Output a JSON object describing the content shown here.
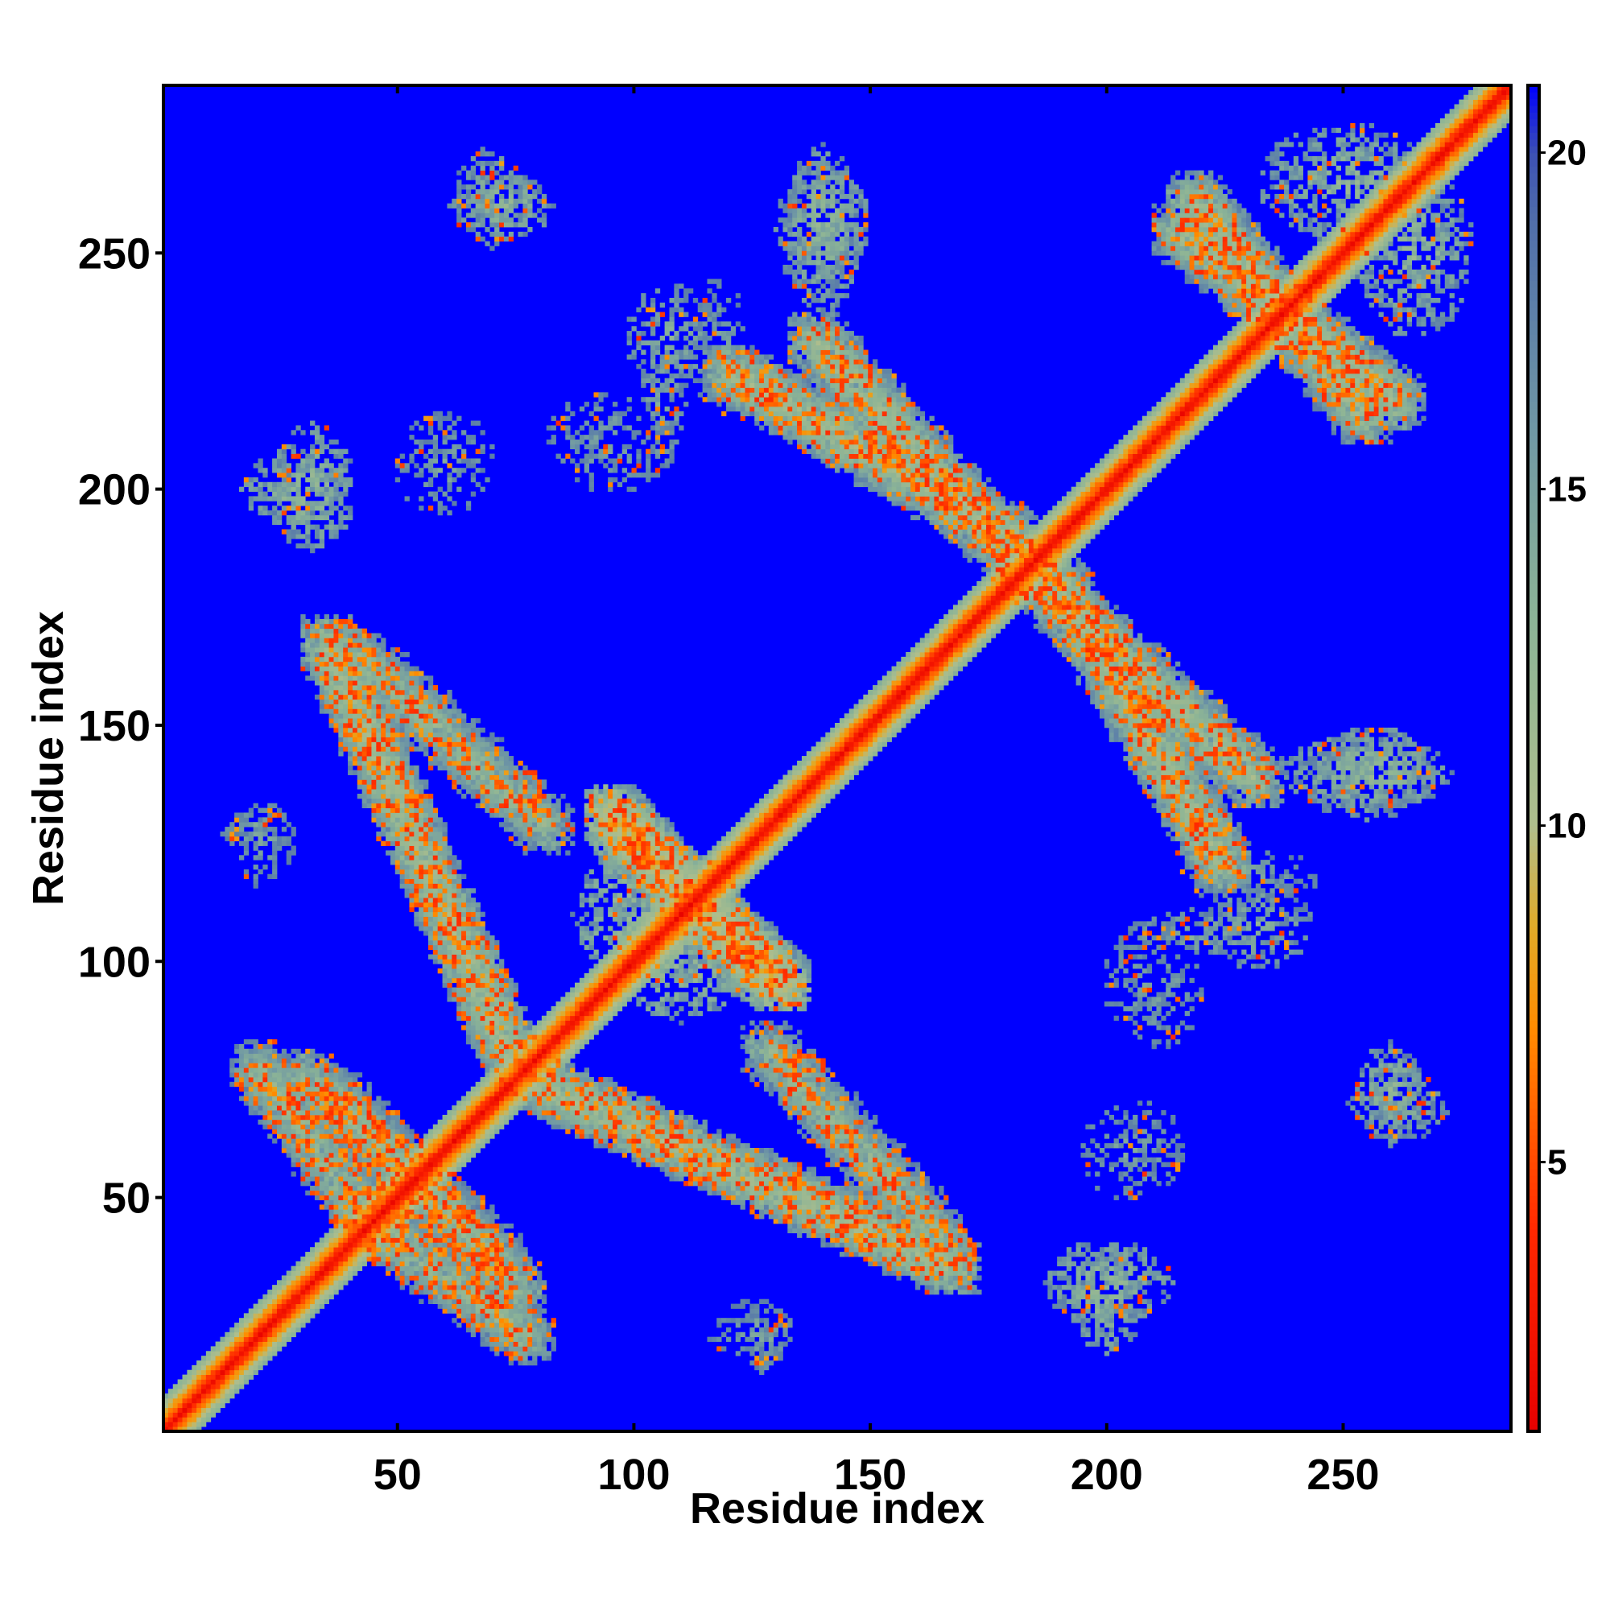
{
  "chart_data": {
    "type": "heatmap",
    "title": "",
    "xlabel": "Residue index",
    "ylabel": "Residue index",
    "xlim": [
      1,
      285
    ],
    "ylim": [
      1,
      285
    ],
    "x_ticks": [
      50,
      100,
      150,
      200,
      250
    ],
    "y_ticks": [
      50,
      100,
      150,
      200,
      250
    ],
    "colorbar": {
      "ticks": [
        5,
        10,
        15,
        20
      ],
      "range": [
        1,
        21
      ],
      "colors": [
        "#ff0000",
        "#ff8800",
        "#90b494",
        "#557799",
        "#0000ff"
      ]
    },
    "background_value": 21,
    "diagonal": {
      "core_value": 2,
      "band_width": 7
    },
    "contact_bands": [
      {
        "from": [
          30,
          76
        ],
        "to": [
          72,
          36
        ],
        "value": 13
      },
      {
        "from": [
          40,
          48
        ],
        "to": [
          78,
          20
        ],
        "value": 13
      },
      {
        "from": [
          80,
          74
        ],
        "to": [
          168,
          35
        ],
        "value": 12
      },
      {
        "from": [
          40,
          166
        ],
        "to": [
          82,
          128
        ],
        "value": 13
      },
      {
        "from": [
          120,
          225
        ],
        "to": [
          180,
          190
        ],
        "value": 12
      },
      {
        "from": [
          180,
          185
        ],
        "to": [
          232,
          138
        ],
        "value": 12
      },
      {
        "from": [
          95,
          132
        ],
        "to": [
          130,
          95
        ],
        "value": 10
      },
      {
        "from": [
          215,
          255
        ],
        "to": [
          262,
          218
        ],
        "value": 12
      }
    ],
    "contact_clusters": [
      {
        "center": [
          28,
          200
        ],
        "size": [
          22,
          16
        ],
        "value": 13
      },
      {
        "center": [
          72,
          260
        ],
        "size": [
          22,
          14
        ],
        "value": 13
      },
      {
        "center": [
          140,
          255
        ],
        "size": [
          20,
          30
        ],
        "value": 13
      },
      {
        "center": [
          108,
          232
        ],
        "size": [
          20,
          24
        ],
        "value": 14
      },
      {
        "center": [
          95,
          210
        ],
        "size": [
          28,
          22
        ],
        "value": 15
      },
      {
        "center": [
          20,
          128
        ],
        "size": [
          16,
          10
        ],
        "value": 15
      },
      {
        "center": [
          255,
          140
        ],
        "size": [
          36,
          16
        ],
        "value": 13
      },
      {
        "center": [
          230,
          118
        ],
        "size": [
          30,
          12
        ],
        "value": 15
      },
      {
        "center": [
          218,
          106
        ],
        "size": [
          26,
          10
        ],
        "value": 14
      },
      {
        "center": [
          262,
          70
        ],
        "size": [
          22,
          16
        ],
        "value": 14
      },
      {
        "center": [
          205,
          60
        ],
        "size": [
          24,
          22
        ],
        "value": 15
      },
      {
        "center": [
          200,
          32
        ],
        "size": [
          28,
          18
        ],
        "value": 13
      },
      {
        "center": [
          125,
          22
        ],
        "size": [
          20,
          14
        ],
        "value": 15
      },
      {
        "center": [
          250,
          265
        ],
        "size": [
          36,
          26
        ],
        "value": 13
      },
      {
        "center": [
          105,
          110
        ],
        "size": [
          36,
          30
        ],
        "value": 12
      }
    ]
  }
}
